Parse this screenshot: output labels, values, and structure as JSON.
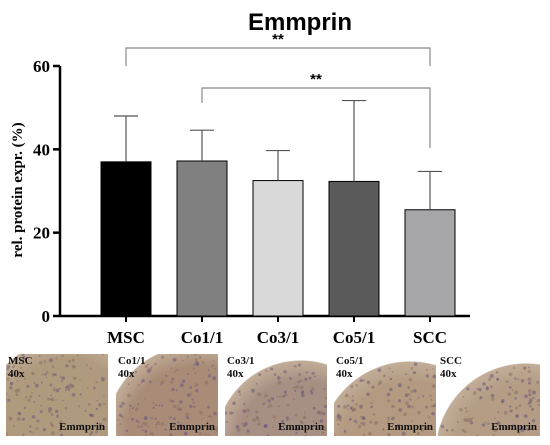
{
  "chart_data": {
    "type": "bar",
    "title": "Emmprin",
    "ylabel": "rel. protein expr. (%)",
    "xlabel": "",
    "categories": [
      "MSC",
      "Co1/1",
      "Co3/1",
      "Co5/1",
      "SCC"
    ],
    "values": [
      37,
      37.2,
      32.5,
      32.3,
      25.5
    ],
    "errors": [
      11,
      7.4,
      7.2,
      19.4,
      9.2
    ],
    "colors": [
      "#000000",
      "#808080",
      "#d9d9d9",
      "#5a5a5a",
      "#a6a6a8"
    ],
    "ylim": [
      0,
      60
    ],
    "yticks": [
      "0",
      "20",
      "40",
      "60"
    ],
    "ytick_values": [
      0,
      20,
      40,
      60
    ],
    "grid": false,
    "annotations": [
      {
        "from": "MSC",
        "to": "SCC",
        "text": "**"
      },
      {
        "from": "Co1/1",
        "to": "SCC",
        "text": "**"
      }
    ]
  },
  "panels": [
    {
      "label": "MSC",
      "mag": "40x",
      "stain": "Emmprin",
      "tissue_color": "#b09a7e"
    },
    {
      "label": "Co1/1",
      "mag": "40x",
      "stain": "Emmprin",
      "tissue_color": "#a88c78"
    },
    {
      "label": "Co3/1",
      "mag": "40x",
      "stain": "Emmprin",
      "tissue_color": "#a78f84"
    },
    {
      "label": "Co5/1",
      "mag": "40x",
      "stain": "Emmprin",
      "tissue_color": "#b39a80"
    },
    {
      "label": "SCC",
      "mag": "40x",
      "stain": "Emmprin",
      "tissue_color": "#b49c85"
    }
  ]
}
